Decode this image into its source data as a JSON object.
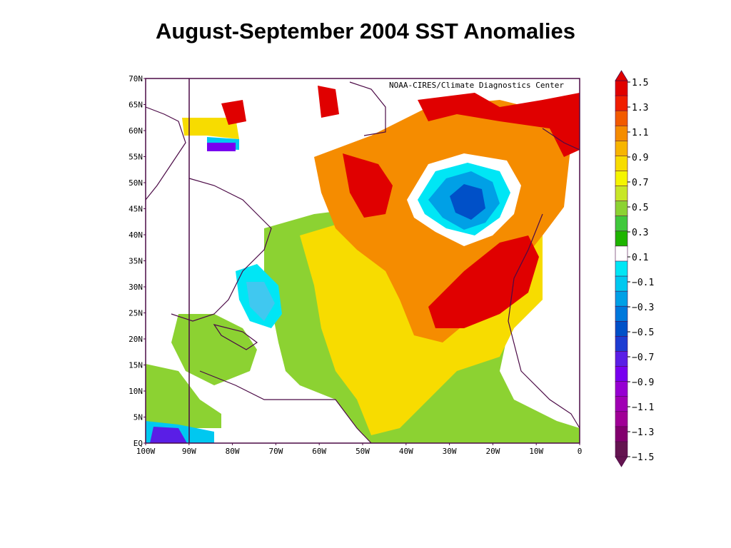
{
  "title": "August-September 2004 SST Anomalies",
  "credit": "NOAA-CIRES/Climate Diagnostics Center",
  "map": {
    "lon_range": [
      -100,
      0
    ],
    "lat_range": [
      0,
      70
    ],
    "lat_labels": [
      "70N",
      "65N",
      "60N",
      "55N",
      "50N",
      "45N",
      "40N",
      "35N",
      "30N",
      "25N",
      "20N",
      "15N",
      "10N",
      "5N",
      "EQ"
    ],
    "lon_labels": [
      "100W",
      "90W",
      "80W",
      "70W",
      "60W",
      "50W",
      "40W",
      "30W",
      "20W",
      "10W",
      "0"
    ]
  },
  "colorbar": {
    "labels": [
      "1.5",
      "1.3",
      "1.1",
      "0.9",
      "0.7",
      "0.5",
      "0.3",
      "0.1",
      "−0.1",
      "−0.3",
      "−0.5",
      "−0.7",
      "−0.9",
      "−1.1",
      "−1.3",
      "−1.5"
    ],
    "colors": [
      "#e00000",
      "#f01e00",
      "#f25a00",
      "#f58c00",
      "#f7b400",
      "#f7dc00",
      "#f5f500",
      "#c8e628",
      "#8cd232",
      "#40c83c",
      "#1eb400",
      "#ffffff",
      "#00e6f5",
      "#00c8f0",
      "#00a0e6",
      "#0078dc",
      "#0050c8",
      "#1e3cd2",
      "#5a1ee6",
      "#7800f0",
      "#9600d2",
      "#a000b4",
      "#a00096",
      "#82006e",
      "#641450"
    ]
  }
}
